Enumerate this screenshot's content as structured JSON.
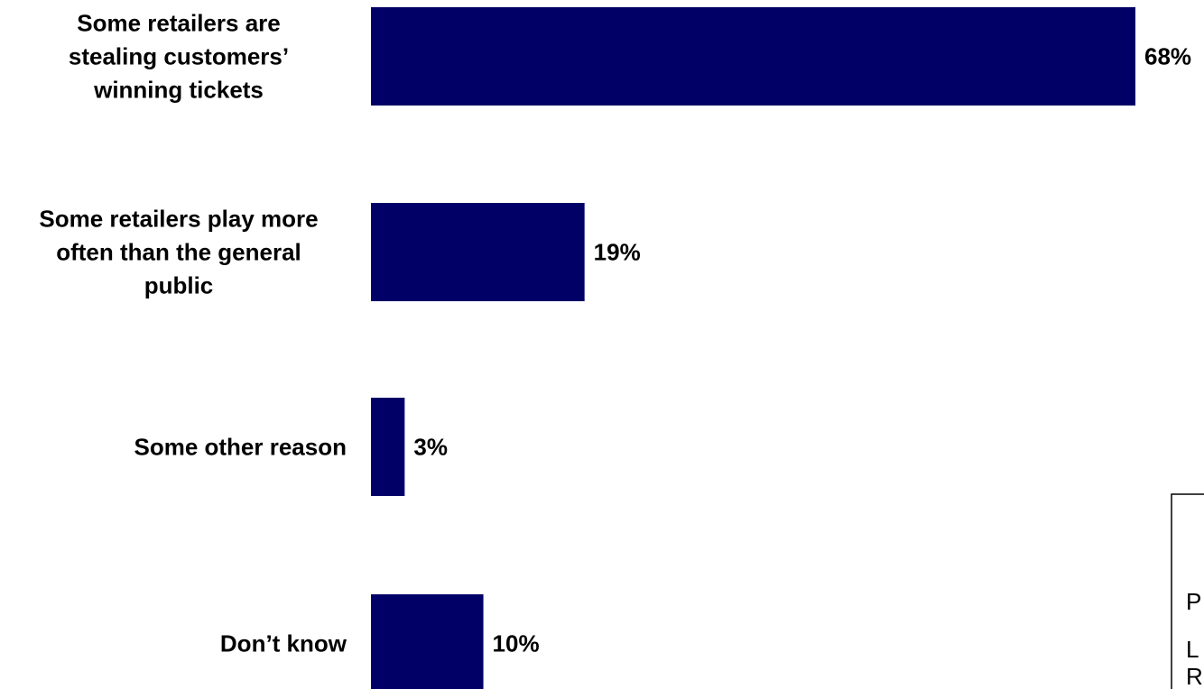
{
  "chart_data": {
    "type": "bar",
    "orientation": "horizontal",
    "categories": [
      "Some retailers are stealing customers’ winning tickets",
      "Some retailers play more often than the general public",
      "Some other reason",
      "Don’t know"
    ],
    "category_lines": [
      [
        "Some retailers are",
        "stealing customers’",
        "winning tickets"
      ],
      [
        "Some retailers play more",
        "often than the general",
        "public"
      ],
      [
        "Some other reason"
      ],
      [
        "Don’t know"
      ]
    ],
    "values": [
      68,
      19,
      3,
      10
    ],
    "value_labels": [
      "68%",
      "19%",
      "3%",
      "10%"
    ],
    "xlim": [
      0,
      68
    ],
    "bar_color": "#000066",
    "grid": false,
    "legend": "none",
    "title": "",
    "xlabel": "",
    "ylabel": ""
  },
  "side_note": {
    "letters": [
      "P",
      "L",
      "R"
    ]
  }
}
